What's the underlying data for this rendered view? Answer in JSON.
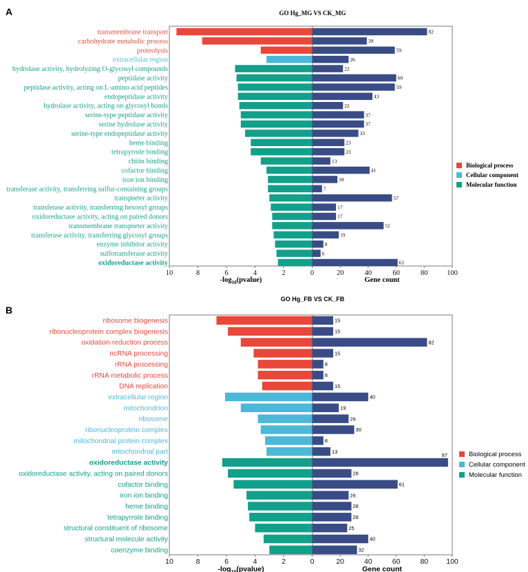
{
  "colors": {
    "biological": "#E8473A",
    "cellular": "#4CB8D8",
    "molecular": "#12A08A",
    "count_bar": "#3A4C86",
    "frame": "#7a7a7a",
    "text": "#222222"
  },
  "chart_data": [
    {
      "panel_label": "A",
      "type": "bar",
      "title": "GO Hg_MG VS CK_MG",
      "xlabel_left": "-log",
      "xlabel_left_sub": "10",
      "xlabel_left_tail": "(pvalue)",
      "xlabel_right": "Gene count",
      "left_ticks": [
        "10",
        "8",
        "6",
        "4",
        "2",
        "0"
      ],
      "right_ticks": [
        "0",
        "20",
        "40",
        "60",
        "80",
        "100"
      ],
      "left_range": [
        0,
        10
      ],
      "right_range": [
        0,
        100
      ],
      "legend": [
        {
          "category": "biological",
          "label": "Biological process"
        },
        {
          "category": "cellular",
          "label": "Cellular component"
        },
        {
          "category": "molecular",
          "label": "Molecular function"
        }
      ],
      "terms": [
        {
          "label": "transmembrane transport",
          "category": "biological",
          "neglog10p": 9.5,
          "count": 82,
          "count_label": "82"
        },
        {
          "label": "carbohydrate metabolic process",
          "category": "biological",
          "neglog10p": 7.7,
          "count": 39,
          "count_label": "39"
        },
        {
          "label": "proteolysis",
          "category": "biological",
          "neglog10p": 3.6,
          "count": 59,
          "count_label": "59"
        },
        {
          "label": "extracellular region",
          "category": "cellular",
          "neglog10p": 3.2,
          "count": 26,
          "count_label": "26"
        },
        {
          "label": "hydrolase activity, hydrolyzing O-glycosyl compounds",
          "category": "molecular",
          "neglog10p": 5.4,
          "count": 22,
          "count_label": "22"
        },
        {
          "label": "peptidase activity",
          "category": "molecular",
          "neglog10p": 5.3,
          "count": 60,
          "count_label": "60"
        },
        {
          "label": "peptidase activity, acting on L-amino acid peptides",
          "category": "molecular",
          "neglog10p": 5.2,
          "count": 59,
          "count_label": "59"
        },
        {
          "label": "endopeptidase activity",
          "category": "molecular",
          "neglog10p": 5.2,
          "count": 43,
          "count_label": "43"
        },
        {
          "label": "hydrolase activity, acting on glycosyl bonds",
          "category": "molecular",
          "neglog10p": 5.1,
          "count": 22,
          "count_label": "22"
        },
        {
          "label": "serine-type peptidase activity",
          "category": "molecular",
          "neglog10p": 5.0,
          "count": 37,
          "count_label": "37"
        },
        {
          "label": "serine hydrolase activity",
          "category": "molecular",
          "neglog10p": 5.0,
          "count": 37,
          "count_label": "37"
        },
        {
          "label": "serine-type endopeptidase activity",
          "category": "molecular",
          "neglog10p": 4.7,
          "count": 33,
          "count_label": "33"
        },
        {
          "label": "heme binding",
          "category": "molecular",
          "neglog10p": 4.3,
          "count": 23,
          "count_label": "23"
        },
        {
          "label": "tetrapyrrole binding",
          "category": "molecular",
          "neglog10p": 4.3,
          "count": 23,
          "count_label": "23"
        },
        {
          "label": "chitin binding",
          "category": "molecular",
          "neglog10p": 3.6,
          "count": 13,
          "count_label": "13"
        },
        {
          "label": "cofactor binding",
          "category": "molecular",
          "neglog10p": 3.2,
          "count": 41,
          "count_label": "41"
        },
        {
          "label": "iron ion binding",
          "category": "molecular",
          "neglog10p": 3.1,
          "count": 18,
          "count_label": "18"
        },
        {
          "label": "transferase activity, transferring sulfur-containing groups",
          "category": "molecular",
          "neglog10p": 3.1,
          "count": 7,
          "count_label": "7"
        },
        {
          "label": "transporter activity",
          "category": "molecular",
          "neglog10p": 3.0,
          "count": 57,
          "count_label": "57"
        },
        {
          "label": "transferase activity, transferring hexosyl groups",
          "category": "molecular",
          "neglog10p": 2.9,
          "count": 17,
          "count_label": "17"
        },
        {
          "label": "oxidoreductase activity, acting on paired donors",
          "category": "molecular",
          "neglog10p": 2.8,
          "count": 17,
          "count_label": "17"
        },
        {
          "label": "transmembrane transporter activity",
          "category": "molecular",
          "neglog10p": 2.8,
          "count": 51,
          "count_label": "51"
        },
        {
          "label": "transferase activity, transferring glycosyl groups",
          "category": "molecular",
          "neglog10p": 2.7,
          "count": 19,
          "count_label": "19"
        },
        {
          "label": "enzyme inhibitor activity",
          "category": "molecular",
          "neglog10p": 2.6,
          "count": 8,
          "count_label": "8"
        },
        {
          "label": "sulfotransferase activity",
          "category": "molecular",
          "neglog10p": 2.5,
          "count": 6,
          "count_label": "6"
        },
        {
          "label": "oxidoreductase activity",
          "category": "molecular",
          "neglog10p": 2.4,
          "count": 61,
          "count_label": "61",
          "bold": true
        }
      ]
    },
    {
      "panel_label": "B",
      "type": "bar",
      "title": "GO Hg_FB VS CK_FB",
      "xlabel_left": "-log",
      "xlabel_left_sub": "10",
      "xlabel_left_tail": "(pvalue)",
      "xlabel_right": "Gene count",
      "left_ticks": [
        "10",
        "8",
        "6",
        "4",
        "2",
        "0"
      ],
      "right_ticks": [
        "0",
        "20",
        "40",
        "60",
        "80",
        "100"
      ],
      "left_range": [
        0,
        10
      ],
      "right_range": [
        0,
        100
      ],
      "legend": [
        {
          "category": "biological",
          "label": "Biological process"
        },
        {
          "category": "cellular",
          "label": "Cellular component"
        },
        {
          "category": "molecular",
          "label": "Molecular function"
        }
      ],
      "terms": [
        {
          "label": "ribosome biogenesis",
          "category": "biological",
          "neglog10p": 6.7,
          "count": 15,
          "count_label": "15"
        },
        {
          "label": "ribonucleoprotein complex biogenesis",
          "category": "biological",
          "neglog10p": 5.9,
          "count": 15,
          "count_label": "15"
        },
        {
          "label": "oxidation-reduction process",
          "category": "biological",
          "neglog10p": 5.0,
          "count": 82,
          "count_label": "82"
        },
        {
          "label": "ncRNA processing",
          "category": "biological",
          "neglog10p": 4.1,
          "count": 15,
          "count_label": "15"
        },
        {
          "label": "rRNA processing",
          "category": "biological",
          "neglog10p": 3.8,
          "count": 8,
          "count_label": "8"
        },
        {
          "label": "rRNA metabolic process",
          "category": "biological",
          "neglog10p": 3.8,
          "count": 8,
          "count_label": "8"
        },
        {
          "label": "DNA replication",
          "category": "biological",
          "neglog10p": 3.5,
          "count": 15,
          "count_label": "15"
        },
        {
          "label": "extracellular region",
          "category": "cellular",
          "neglog10p": 6.1,
          "count": 40,
          "count_label": "40"
        },
        {
          "label": "mitochondrion",
          "category": "cellular",
          "neglog10p": 5.0,
          "count": 19,
          "count_label": "19"
        },
        {
          "label": "ribosome",
          "category": "cellular",
          "neglog10p": 3.8,
          "count": 26,
          "count_label": "26"
        },
        {
          "label": "ribonucleoprotein complex",
          "category": "cellular",
          "neglog10p": 3.6,
          "count": 30,
          "count_label": "30"
        },
        {
          "label": "mitochondrial protein complex",
          "category": "cellular",
          "neglog10p": 3.3,
          "count": 8,
          "count_label": "8"
        },
        {
          "label": "mitochondrial part",
          "category": "cellular",
          "neglog10p": 3.2,
          "count": 13,
          "count_label": "13"
        },
        {
          "label": "oxidoreductase activity",
          "category": "molecular",
          "neglog10p": 6.3,
          "count": 97,
          "count_label": "97",
          "bold": true
        },
        {
          "label": "oxidoreductase activity, acting on paired donors",
          "category": "molecular",
          "neglog10p": 5.9,
          "count": 28,
          "count_label": "28"
        },
        {
          "label": "cofactor binding",
          "category": "molecular",
          "neglog10p": 5.5,
          "count": 61,
          "count_label": "61"
        },
        {
          "label": "iron ion binding",
          "category": "molecular",
          "neglog10p": 4.6,
          "count": 26,
          "count_label": "26"
        },
        {
          "label": "heme binding",
          "category": "molecular",
          "neglog10p": 4.5,
          "count": 28,
          "count_label": "28"
        },
        {
          "label": "tetrapyrrole binding",
          "category": "molecular",
          "neglog10p": 4.4,
          "count": 28,
          "count_label": "28"
        },
        {
          "label": "structural constituent of ribosome",
          "category": "molecular",
          "neglog10p": 4.0,
          "count": 25,
          "count_label": "25"
        },
        {
          "label": "structural molecule activity",
          "category": "molecular",
          "neglog10p": 3.4,
          "count": 40,
          "count_label": "40"
        },
        {
          "label": "coenzyme binding",
          "category": "molecular",
          "neglog10p": 3.0,
          "count": 32,
          "count_label": "32"
        }
      ]
    }
  ]
}
